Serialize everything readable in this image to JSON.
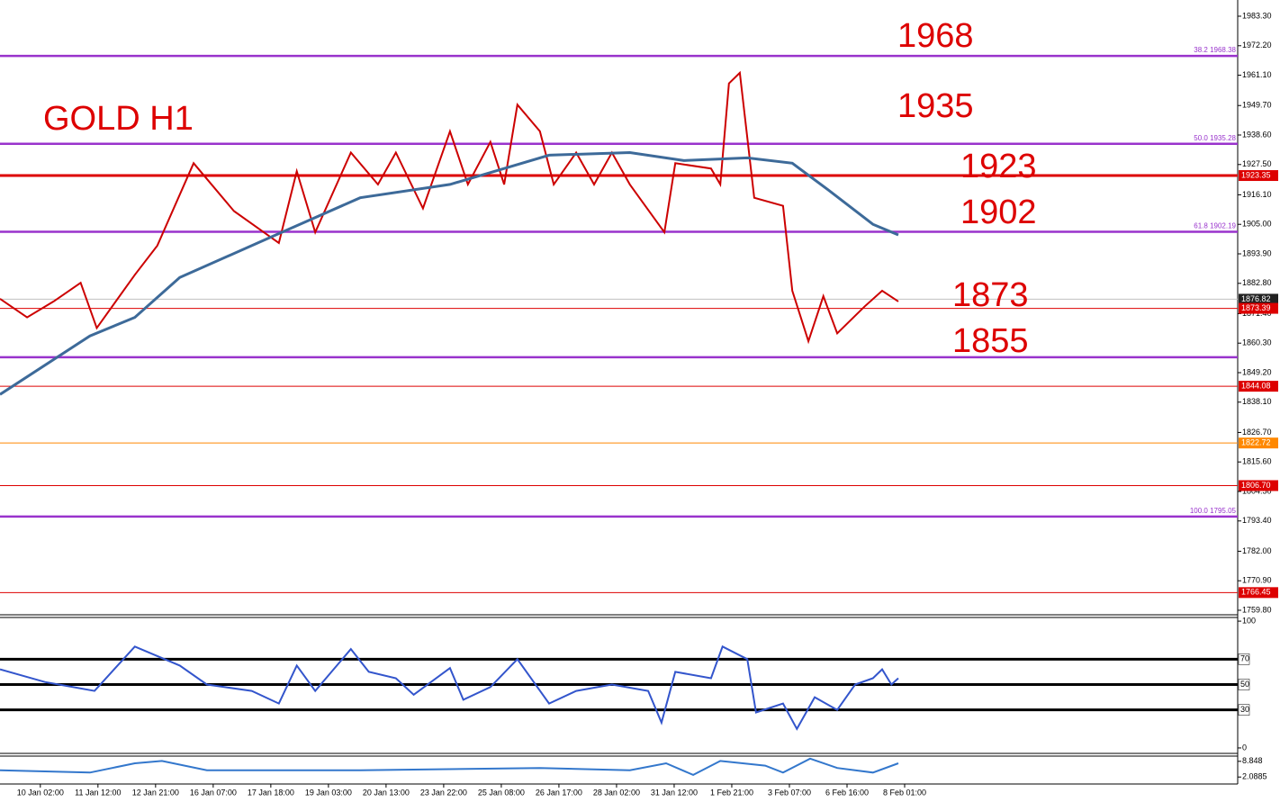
{
  "chart_data": [
    {
      "type": "line",
      "title": "GOLD H1",
      "xlim": [
        -0.7,
        20.78
      ],
      "xticks": [
        {
          "value": 0,
          "label": "10 Jan 02:00"
        },
        {
          "value": 1,
          "label": "11 Jan 12:00"
        },
        {
          "value": 2,
          "label": "12 Jan 21:00"
        },
        {
          "value": 3,
          "label": "16 Jan 07:00"
        },
        {
          "value": 4,
          "label": "17 Jan 18:00"
        },
        {
          "value": 5,
          "label": "19 Jan 03:00"
        },
        {
          "value": 6,
          "label": "20 Jan 13:00"
        },
        {
          "value": 7,
          "label": "23 Jan 22:00"
        },
        {
          "value": 8,
          "label": "25 Jan 08:00"
        },
        {
          "value": 9,
          "label": "26 Jan 17:00"
        },
        {
          "value": 10,
          "label": "28 Jan 02:00"
        },
        {
          "value": 11,
          "label": "31 Jan 12:00"
        },
        {
          "value": 12,
          "label": "1 Feb 21:00"
        },
        {
          "value": 13,
          "label": "3 Feb 07:00"
        },
        {
          "value": 14,
          "label": "6 Feb 16:00"
        },
        {
          "value": 15,
          "label": "8 Feb 01:00"
        }
      ],
      "ylim": [
        1758.1,
        1989.4
      ],
      "yticks": [
        {
          "value": 1983.3,
          "label": "1983.30"
        },
        {
          "value": 1972.2,
          "label": "1972.20"
        },
        {
          "value": 1961.1,
          "label": "1961.10"
        },
        {
          "value": 1949.7,
          "label": "1949.70"
        },
        {
          "value": 1938.6,
          "label": "1938.60"
        },
        {
          "value": 1927.5,
          "label": "1927.50"
        },
        {
          "value": 1916.1,
          "label": "1916.10"
        },
        {
          "value": 1905,
          "label": "1905.00"
        },
        {
          "value": 1893.9,
          "label": "1893.90"
        },
        {
          "value": 1882.8,
          "label": "1882.80"
        },
        {
          "value": 1871.4,
          "label": "1871.40"
        },
        {
          "value": 1860.3,
          "label": "1860.30"
        },
        {
          "value": 1849.2,
          "label": "1849.20"
        },
        {
          "value": 1838.1,
          "label": "1838.10"
        },
        {
          "value": 1826.7,
          "label": "1826.70"
        },
        {
          "value": 1815.6,
          "label": "1815.60"
        },
        {
          "value": 1804.5,
          "label": "1804.50"
        },
        {
          "value": 1793.4,
          "label": "1793.40"
        },
        {
          "value": 1782,
          "label": "1782.00"
        },
        {
          "value": 1770.9,
          "label": "1770.90"
        },
        {
          "value": 1759.8,
          "label": "1759.80"
        }
      ],
      "series": [
        {
          "color": "#cc0000",
          "x": [
            -0.7,
            -0.23,
            0.23,
            0.7,
            0.98,
            1.64,
            2.03,
            2.66,
            3.36,
            4.14,
            4.45,
            4.77,
            5.39,
            5.86,
            6.17,
            6.64,
            7.11,
            7.42,
            7.81,
            8.05,
            8.28,
            8.67,
            8.91,
            9.3,
            9.61,
            9.92,
            10.23,
            10.83,
            11.02,
            11.64,
            11.8,
            11.95,
            12.14,
            12.39,
            12.89,
            13.05,
            13.33,
            13.59,
            13.83,
            14.3,
            14.61,
            14.89
          ],
          "values": [
            1877,
            1870,
            1876,
            1883,
            1866,
            1886,
            1897,
            1928,
            1910,
            1898,
            1925,
            1902,
            1932,
            1920,
            1932,
            1911,
            1940,
            1920,
            1936,
            1920,
            1950,
            1940,
            1920,
            1932,
            1920,
            1932,
            1920,
            1902,
            1928,
            1926,
            1920,
            1958,
            1962,
            1915,
            1912,
            1880,
            1861,
            1878,
            1864,
            1874,
            1880,
            1876
          ]
        },
        {
          "color": "#3d6a99",
          "x": [
            -0.7,
            0.86,
            1.64,
            2.42,
            3.98,
            5.55,
            7.11,
            8.05,
            8.83,
            10.23,
            11.17,
            12.27,
            13.05,
            13.67,
            14.45,
            14.89
          ],
          "values": [
            1841,
            1863,
            1870,
            1885,
            1900,
            1915,
            1920,
            1926,
            1931,
            1932,
            1929,
            1930,
            1928,
            1918,
            1905,
            1901
          ]
        }
      ],
      "levels": [
        {
          "value": 1968.38,
          "color": "#9933cc",
          "label": "38.2 1968.38"
        },
        {
          "value": 1935.28,
          "color": "#9933cc",
          "label": "50.0 1935.28"
        },
        {
          "value": 1923.35,
          "color": "#dd0000",
          "tag": "1923.35"
        },
        {
          "value": 1902.19,
          "color": "#9933cc",
          "label": "61.8  1902.19"
        },
        {
          "value": 1876.82,
          "color": "#c0c0c0",
          "tag": "1876.82"
        },
        {
          "value": 1873.39,
          "color": "#dd0000",
          "tag": "1873.39"
        },
        {
          "value": 1855,
          "color": "#9933cc"
        },
        {
          "value": 1844.08,
          "color": "#dd0000",
          "tag": "1844.08"
        },
        {
          "value": 1822.72,
          "color": "#ff8800",
          "tag": "1822.72"
        },
        {
          "value": 1806.7,
          "color": "#dd0000",
          "tag": "1806.70"
        },
        {
          "value": 1795.05,
          "color": "#9933cc",
          "label": "100.0  1795.05"
        },
        {
          "value": 1766.45,
          "color": "#dd0000",
          "tag": "1766.45"
        }
      ],
      "annotations": [
        "1968",
        "1935",
        "1923",
        "1902",
        "1873",
        "1855"
      ]
    },
    {
      "type": "line",
      "ylim": [
        -4.3,
        102.9
      ],
      "yticks": [
        100,
        0
      ],
      "levels": [
        70,
        50,
        30
      ],
      "series": [
        {
          "color": "#3355cc",
          "x": [
            -0.7,
            0.08,
            0.94,
            1.64,
            2.42,
            2.89,
            3.67,
            4.14,
            4.45,
            4.77,
            5.39,
            5.7,
            6.17,
            6.48,
            7.11,
            7.34,
            7.81,
            8.28,
            8.83,
            9.3,
            9.92,
            10.55,
            10.78,
            11.02,
            11.64,
            11.84,
            12.27,
            12.42,
            12.89,
            13.13,
            13.44,
            13.83,
            14.14,
            14.45,
            14.61,
            14.77,
            14.89
          ],
          "values": [
            62,
            52,
            45,
            80,
            65,
            50,
            45,
            35,
            65,
            45,
            78,
            60,
            55,
            42,
            63,
            38,
            48,
            70,
            35,
            45,
            50,
            45,
            20,
            60,
            55,
            80,
            70,
            28,
            35,
            15,
            40,
            30,
            50,
            55,
            62,
            50,
            55
          ]
        }
      ]
    },
    {
      "type": "line",
      "ylim": [
        -0.92,
        11.1
      ],
      "yticks": [
        8.848,
        2.0885
      ],
      "series": [
        {
          "color": "#3377cc",
          "x": [
            -0.7,
            0.86,
            1.64,
            2.11,
            2.89,
            5.55,
            8.67,
            10.23,
            10.86,
            11.33,
            11.8,
            12.58,
            12.89,
            13.36,
            13.83,
            14.45,
            14.89
          ],
          "values": [
            5,
            4,
            8,
            9,
            5,
            5,
            6,
            5,
            8,
            3,
            9,
            7,
            4,
            10,
            6,
            4,
            8
          ]
        }
      ]
    }
  ]
}
